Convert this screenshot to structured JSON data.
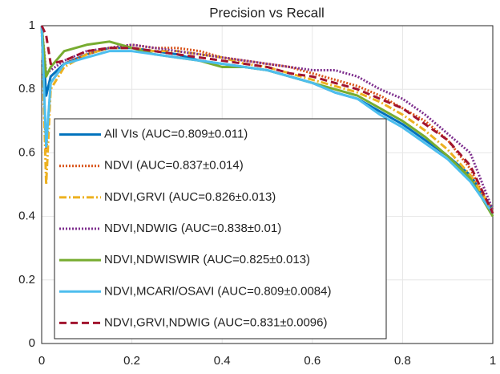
{
  "chart_data": {
    "type": "line",
    "title": "Precision vs Recall",
    "x": [
      0,
      0.01,
      0.02,
      0.05,
      0.1,
      0.15,
      0.2,
      0.25,
      0.3,
      0.35,
      0.4,
      0.45,
      0.5,
      0.55,
      0.6,
      0.65,
      0.7,
      0.75,
      0.8,
      0.85,
      0.9,
      0.95,
      1
    ],
    "series": [
      {
        "name": "All VIs (AUC=0.809±0.011)",
        "color": "#0072bd",
        "style": "solid",
        "values": [
          1,
          0.78,
          0.84,
          0.88,
          0.91,
          0.93,
          0.93,
          0.92,
          0.91,
          0.89,
          0.88,
          0.87,
          0.86,
          0.84,
          0.82,
          0.79,
          0.77,
          0.73,
          0.69,
          0.64,
          0.59,
          0.53,
          0.42
        ]
      },
      {
        "name": "NDVI  (AUC=0.837±0.014)",
        "color": "#d95319",
        "style": "dotted",
        "values": [
          1,
          0.6,
          0.82,
          0.88,
          0.91,
          0.93,
          0.94,
          0.93,
          0.93,
          0.92,
          0.9,
          0.89,
          0.88,
          0.87,
          0.85,
          0.83,
          0.81,
          0.78,
          0.74,
          0.7,
          0.64,
          0.55,
          0.41
        ]
      },
      {
        "name": "NDVI,GRVI (AUC=0.826±0.013)",
        "color": "#edb120",
        "style": "dashdot",
        "values": [
          1,
          0.5,
          0.8,
          0.87,
          0.91,
          0.93,
          0.93,
          0.92,
          0.92,
          0.91,
          0.9,
          0.88,
          0.87,
          0.85,
          0.83,
          0.81,
          0.79,
          0.76,
          0.72,
          0.67,
          0.61,
          0.53,
          0.42
        ]
      },
      {
        "name": "NDVI,NDWIG  (AUC=0.838±0.01)",
        "color": "#7e2f8e",
        "style": "dotted",
        "values": [
          1,
          0.85,
          0.86,
          0.89,
          0.92,
          0.93,
          0.94,
          0.93,
          0.92,
          0.91,
          0.9,
          0.89,
          0.88,
          0.87,
          0.86,
          0.86,
          0.84,
          0.8,
          0.77,
          0.72,
          0.66,
          0.6,
          0.42
        ]
      },
      {
        "name": "NDVI,NDWISWIR (AUC=0.825±0.013)",
        "color": "#77ac30",
        "style": "solid",
        "values": [
          1,
          0.84,
          0.87,
          0.92,
          0.94,
          0.95,
          0.93,
          0.91,
          0.9,
          0.89,
          0.87,
          0.87,
          0.86,
          0.84,
          0.82,
          0.8,
          0.78,
          0.74,
          0.7,
          0.65,
          0.59,
          0.52,
          0.4
        ]
      },
      {
        "name": "NDVI,MCARI/OSAVI (AUC=0.809±0.0084)",
        "color": "#4dbeee",
        "style": "solid",
        "values": [
          1,
          0.62,
          0.82,
          0.88,
          0.9,
          0.92,
          0.92,
          0.91,
          0.9,
          0.89,
          0.88,
          0.87,
          0.86,
          0.84,
          0.82,
          0.79,
          0.77,
          0.72,
          0.68,
          0.63,
          0.58,
          0.51,
          0.41
        ]
      },
      {
        "name": "NDVI,GRVI,NDWIG  (AUC=0.831±0.0096)",
        "color": "#a2142f",
        "style": "dashed",
        "values": [
          1,
          0.97,
          0.88,
          0.89,
          0.92,
          0.93,
          0.93,
          0.92,
          0.91,
          0.9,
          0.89,
          0.88,
          0.87,
          0.85,
          0.84,
          0.82,
          0.8,
          0.77,
          0.74,
          0.69,
          0.64,
          0.56,
          0.41
        ]
      }
    ],
    "xlim": [
      0,
      1
    ],
    "xticks": [
      0,
      0.2,
      0.4,
      0.6,
      0.8,
      1
    ],
    "ylim": [
      0,
      1
    ],
    "yticks": [
      0,
      0.2,
      0.4,
      0.6,
      0.8,
      1
    ],
    "grid": true,
    "legend": "lower left"
  }
}
